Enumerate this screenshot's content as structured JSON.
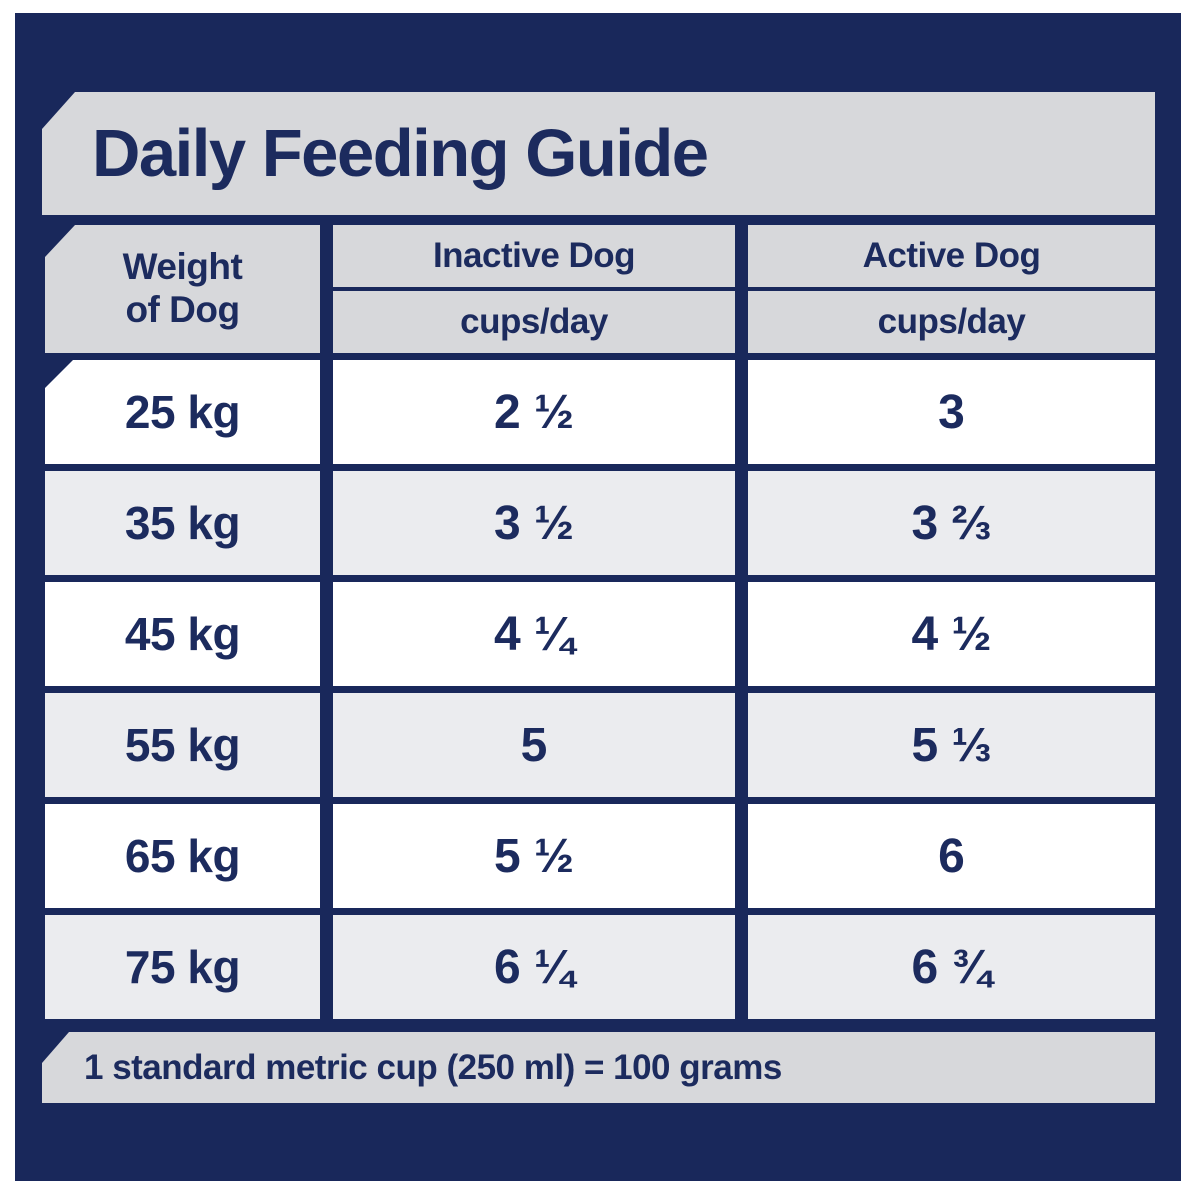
{
  "title": "Daily Feeding Guide",
  "colors": {
    "navy": "#19285b",
    "text_navy": "#1c2b5e",
    "banner_gray": "#d7d8db",
    "alt_row_gray": "#ebecef",
    "row_white": "#ffffff"
  },
  "table": {
    "weight_header_line1": "Weight",
    "weight_header_line2": "of Dog",
    "columns": [
      {
        "label": "Inactive Dog",
        "sublabel": "cups/day"
      },
      {
        "label": "Active Dog",
        "sublabel": "cups/day"
      }
    ],
    "rows": [
      {
        "weight": "25 kg",
        "inactive": "2 ½",
        "active": "3"
      },
      {
        "weight": "35 kg",
        "inactive": "3 ½",
        "active": "3 ⅔"
      },
      {
        "weight": "45 kg",
        "inactive": "4 ¼",
        "active": "4 ½"
      },
      {
        "weight": "55 kg",
        "inactive": "5",
        "active": "5 ⅓"
      },
      {
        "weight": "65 kg",
        "inactive": "5 ½",
        "active": "6"
      },
      {
        "weight": "75 kg",
        "inactive": "6 ¼",
        "active": "6 ¾"
      }
    ]
  },
  "footer": {
    "note": "1 standard metric cup (250 ml) = 100 grams"
  },
  "chart_data": {
    "type": "table",
    "title": "Daily Feeding Guide",
    "columns": [
      "Weight of Dog",
      "Inactive Dog (cups/day)",
      "Active Dog (cups/day)"
    ],
    "rows": [
      [
        "25 kg",
        "2 1/2",
        "3"
      ],
      [
        "35 kg",
        "3 1/2",
        "3 2/3"
      ],
      [
        "45 kg",
        "4 1/4",
        "4 1/2"
      ],
      [
        "55 kg",
        "5",
        "5 1/3"
      ],
      [
        "65 kg",
        "5 1/2",
        "6"
      ],
      [
        "75 kg",
        "6 1/4",
        "6 3/4"
      ]
    ],
    "note": "1 standard metric cup (250 ml) = 100 grams"
  }
}
